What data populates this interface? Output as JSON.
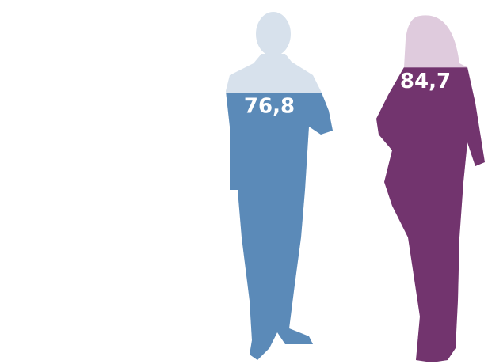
{
  "chart_data": {
    "type": "pictograph",
    "series": [
      {
        "color": "#5b8ab8",
        "background": "#d7e1ec",
        "values": [
          76.8
        ],
        "value_labels": [
          "76,8"
        ]
      },
      {
        "color": "#72346e",
        "background": "#dfcbdd",
        "values": [
          84.7
        ],
        "value_labels": [
          "84,7"
        ]
      }
    ],
    "ylim": [
      0,
      100
    ]
  }
}
